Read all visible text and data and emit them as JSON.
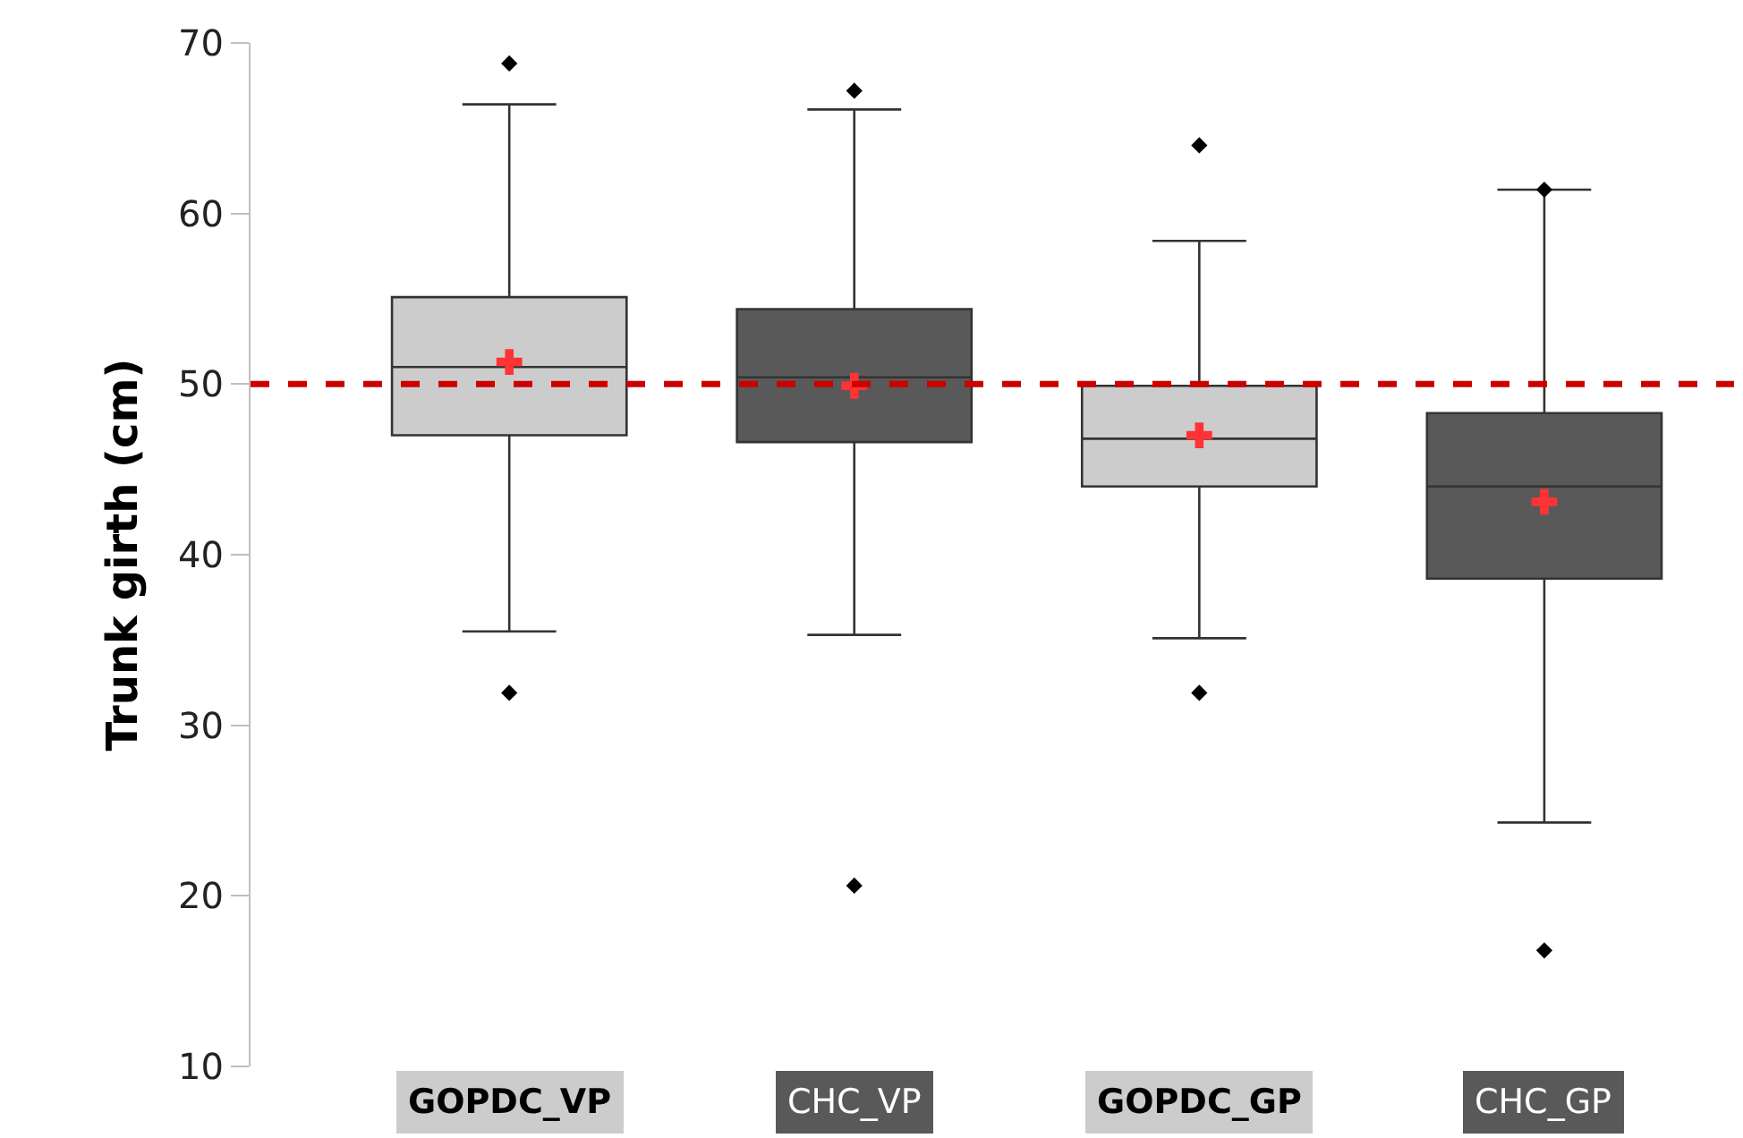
{
  "chart_data": {
    "type": "box",
    "ylabel": "Trunk girth (cm)",
    "categories": [
      "GOPDC_VP",
      "CHC_VP",
      "GOPDC_GP",
      "CHC_GP"
    ],
    "colors": [
      "#cccccc",
      "#595959",
      "#cccccc",
      "#595959"
    ],
    "boxes": [
      {
        "low": 35.5,
        "q1": 47.0,
        "median": 51.0,
        "q3": 55.1,
        "high": 66.4,
        "outliers": [
          68.8,
          31.9
        ]
      },
      {
        "low": 35.3,
        "q1": 46.6,
        "median": 50.4,
        "q3": 54.4,
        "high": 66.1,
        "outliers": [
          67.2,
          20.6
        ]
      },
      {
        "low": 35.1,
        "q1": 44.0,
        "median": 46.8,
        "q3": 49.9,
        "high": 58.4,
        "outliers": [
          64.0,
          31.9
        ]
      },
      {
        "low": 24.3,
        "q1": 38.6,
        "median": 44.0,
        "q3": 48.3,
        "high": 61.4,
        "outliers": [
          61.4,
          16.8
        ]
      }
    ],
    "series": [
      {
        "type": "scatter",
        "marker": "cross",
        "color": "#ff3333",
        "x": [
          "GOPDC_VP",
          "CHC_VP",
          "GOPDC_GP",
          "CHC_GP"
        ],
        "values": [
          51.3,
          49.9,
          47.0,
          43.1
        ]
      }
    ],
    "ylim": [
      10,
      70
    ],
    "yticks": [
      10,
      20,
      30,
      40,
      50,
      60,
      70
    ],
    "ref_lines": [
      {
        "axis": "y",
        "value": 50,
        "color": "#cc0000",
        "line_style": "dashed"
      }
    ]
  }
}
